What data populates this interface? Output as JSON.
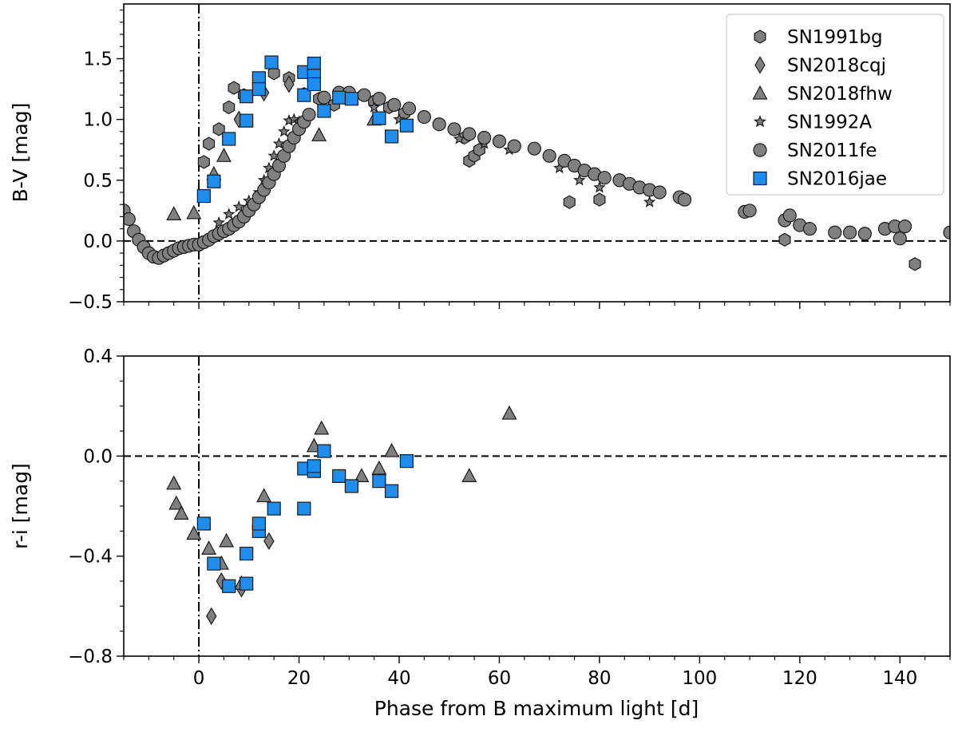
{
  "colors": {
    "gray_marker": "#808080",
    "blue_marker": "#1f8ded",
    "edge": "#1a1a1a"
  },
  "chart_data": [
    {
      "type": "scatter",
      "panel": "top",
      "xlabel": "",
      "ylabel": "B-V [mag]",
      "xlim": [
        -15,
        150
      ],
      "ylim": [
        -0.5,
        1.95
      ],
      "xticks": [
        0,
        20,
        40,
        60,
        80,
        100,
        120,
        140
      ],
      "yticks": [
        -0.5,
        0.0,
        0.5,
        1.0,
        1.5
      ],
      "ytick_labels": [
        "−0.5",
        "0.0",
        "0.5",
        "1.0",
        "1.5"
      ],
      "reference_lines": {
        "horizontal": 0.0,
        "vertical": 0
      },
      "legend_position": "top-right",
      "legend": [
        {
          "label": "SN1991bg",
          "marker": "hexagon",
          "color": "#808080"
        },
        {
          "label": "SN2018cqj",
          "marker": "diamond",
          "color": "#808080"
        },
        {
          "label": "SN2018fhw",
          "marker": "triangle",
          "color": "#808080"
        },
        {
          "label": "SN1992A",
          "marker": "star",
          "color": "#808080"
        },
        {
          "label": "SN2011fe",
          "marker": "circle",
          "color": "#808080"
        },
        {
          "label": "SN2016jae",
          "marker": "square",
          "color": "#1f8ded"
        }
      ],
      "series": [
        {
          "name": "SN1991bg",
          "marker": "hexagon",
          "color": "#808080",
          "x": [
            1,
            2,
            4,
            6,
            7,
            9,
            12,
            15,
            18,
            21,
            24,
            27,
            35,
            38,
            41,
            53,
            54,
            55,
            56,
            74,
            80,
            117,
            143
          ],
          "y": [
            0.65,
            0.8,
            0.92,
            1.1,
            1.26,
            1.2,
            1.3,
            1.38,
            1.34,
            1.21,
            1.17,
            1.12,
            1.15,
            1.1,
            1.05,
            0.85,
            0.66,
            0.7,
            0.75,
            0.32,
            0.34,
            0.01,
            -0.19
          ]
        },
        {
          "name": "SN2018cqj",
          "marker": "diamond",
          "color": "#808080",
          "x": [
            8,
            13,
            18
          ],
          "y": [
            1.0,
            1.22,
            1.29
          ]
        },
        {
          "name": "SN2018fhw",
          "marker": "triangle",
          "color": "#808080",
          "x": [
            -5,
            -1,
            3,
            5,
            24,
            35
          ],
          "y": [
            0.22,
            0.23,
            0.55,
            0.7,
            0.87,
            1.0
          ]
        },
        {
          "name": "SN1992A",
          "marker": "star",
          "color": "#808080",
          "x": [
            4,
            6,
            8,
            10,
            12,
            13,
            14,
            15,
            16,
            17,
            18,
            19,
            20,
            35,
            40,
            52,
            57,
            62,
            72,
            76,
            80,
            90
          ],
          "y": [
            0.15,
            0.22,
            0.28,
            0.33,
            0.4,
            0.5,
            0.6,
            0.7,
            0.8,
            0.9,
            0.99,
            1.0,
            0.98,
            1.1,
            1.0,
            0.84,
            0.8,
            0.75,
            0.6,
            0.5,
            0.44,
            0.32
          ]
        },
        {
          "name": "SN2011fe",
          "marker": "circle",
          "color": "#808080",
          "x": [
            -15,
            -14,
            -13,
            -12,
            -11,
            -10,
            -9,
            -8,
            -7,
            -6,
            -5,
            -4,
            -3,
            -2,
            -1,
            0,
            1,
            2,
            3,
            4,
            5,
            6,
            7,
            8,
            9,
            10,
            11,
            12,
            13,
            14,
            15,
            16,
            17,
            18,
            19,
            20,
            21,
            22,
            25,
            28,
            30,
            33,
            36,
            39,
            42,
            45,
            48,
            51,
            54,
            57,
            60,
            63,
            67,
            70,
            73,
            75,
            77,
            79,
            81,
            84,
            86,
            88,
            90,
            92,
            96,
            97,
            109,
            110,
            117,
            118,
            120,
            122,
            127,
            130,
            133,
            137,
            139,
            140,
            141,
            150
          ],
          "y": [
            0.25,
            0.18,
            0.08,
            0.01,
            -0.05,
            -0.1,
            -0.13,
            -0.14,
            -0.12,
            -0.1,
            -0.08,
            -0.06,
            -0.05,
            -0.04,
            -0.03,
            -0.03,
            -0.01,
            0.01,
            0.04,
            0.06,
            0.08,
            0.1,
            0.13,
            0.16,
            0.2,
            0.25,
            0.3,
            0.36,
            0.42,
            0.48,
            0.55,
            0.62,
            0.7,
            0.78,
            0.85,
            0.92,
            0.98,
            1.04,
            1.18,
            1.22,
            1.22,
            1.2,
            1.17,
            1.12,
            1.09,
            1.02,
            0.96,
            0.92,
            0.88,
            0.85,
            0.82,
            0.78,
            0.76,
            0.7,
            0.66,
            0.62,
            0.58,
            0.55,
            0.52,
            0.5,
            0.47,
            0.44,
            0.42,
            0.4,
            0.36,
            0.34,
            0.24,
            0.25,
            0.17,
            0.21,
            0.13,
            0.1,
            0.07,
            0.07,
            0.06,
            0.1,
            0.12,
            0.02,
            0.12,
            0.07
          ]
        },
        {
          "name": "SN2016jae",
          "marker": "square",
          "color": "#1f8ded",
          "x": [
            1,
            3,
            6,
            9.5,
            9.5,
            12,
            12,
            14.5,
            21,
            21,
            23,
            23,
            23,
            25,
            28,
            30.5,
            36,
            38.5,
            41.5
          ],
          "y": [
            0.37,
            0.49,
            0.84,
            0.99,
            1.19,
            1.34,
            1.25,
            1.47,
            1.39,
            1.2,
            1.46,
            1.36,
            1.29,
            1.07,
            1.18,
            1.17,
            1.01,
            0.86,
            0.95
          ]
        }
      ]
    },
    {
      "type": "scatter",
      "panel": "bottom",
      "xlabel": "Phase from B maximum light [d]",
      "ylabel": "r-i [mag]",
      "xlim": [
        -15,
        150
      ],
      "ylim": [
        -0.8,
        0.4
      ],
      "xticks": [
        0,
        20,
        40,
        60,
        80,
        100,
        120,
        140
      ],
      "yticks": [
        -0.8,
        -0.4,
        0.0,
        0.4
      ],
      "ytick_labels": [
        "−0.8",
        "−0.4",
        "0.0",
        "0.4"
      ],
      "reference_lines": {
        "horizontal": 0.0,
        "vertical": 0
      },
      "series": [
        {
          "name": "SN2018cqj",
          "marker": "diamond",
          "color": "#808080",
          "x": [
            2.5,
            4.5,
            8.5,
            14
          ],
          "y": [
            -0.64,
            -0.5,
            -0.53,
            -0.34
          ]
        },
        {
          "name": "SN2018fhw",
          "marker": "triangle",
          "color": "#808080",
          "x": [
            -5,
            -4.5,
            -3.5,
            -1,
            2,
            4.5,
            5.5,
            8.5,
            13,
            23,
            24.5,
            32.5,
            36,
            38.5,
            54,
            62
          ],
          "y": [
            -0.11,
            -0.19,
            -0.23,
            -0.31,
            -0.37,
            -0.43,
            -0.34,
            -0.51,
            -0.16,
            0.04,
            0.11,
            -0.08,
            -0.05,
            0.02,
            -0.08,
            0.17
          ]
        },
        {
          "name": "SN2016jae",
          "marker": "square",
          "color": "#1f8ded",
          "x": [
            1,
            3,
            6,
            9.5,
            9.5,
            12,
            12,
            15,
            21,
            21,
            23,
            23,
            25,
            28,
            30.5,
            36,
            38.5,
            41.5
          ],
          "y": [
            -0.27,
            -0.43,
            -0.52,
            -0.51,
            -0.39,
            -0.3,
            -0.27,
            -0.21,
            -0.21,
            -0.05,
            -0.06,
            -0.04,
            0.02,
            -0.08,
            -0.12,
            -0.1,
            -0.14,
            -0.02
          ]
        }
      ]
    }
  ]
}
